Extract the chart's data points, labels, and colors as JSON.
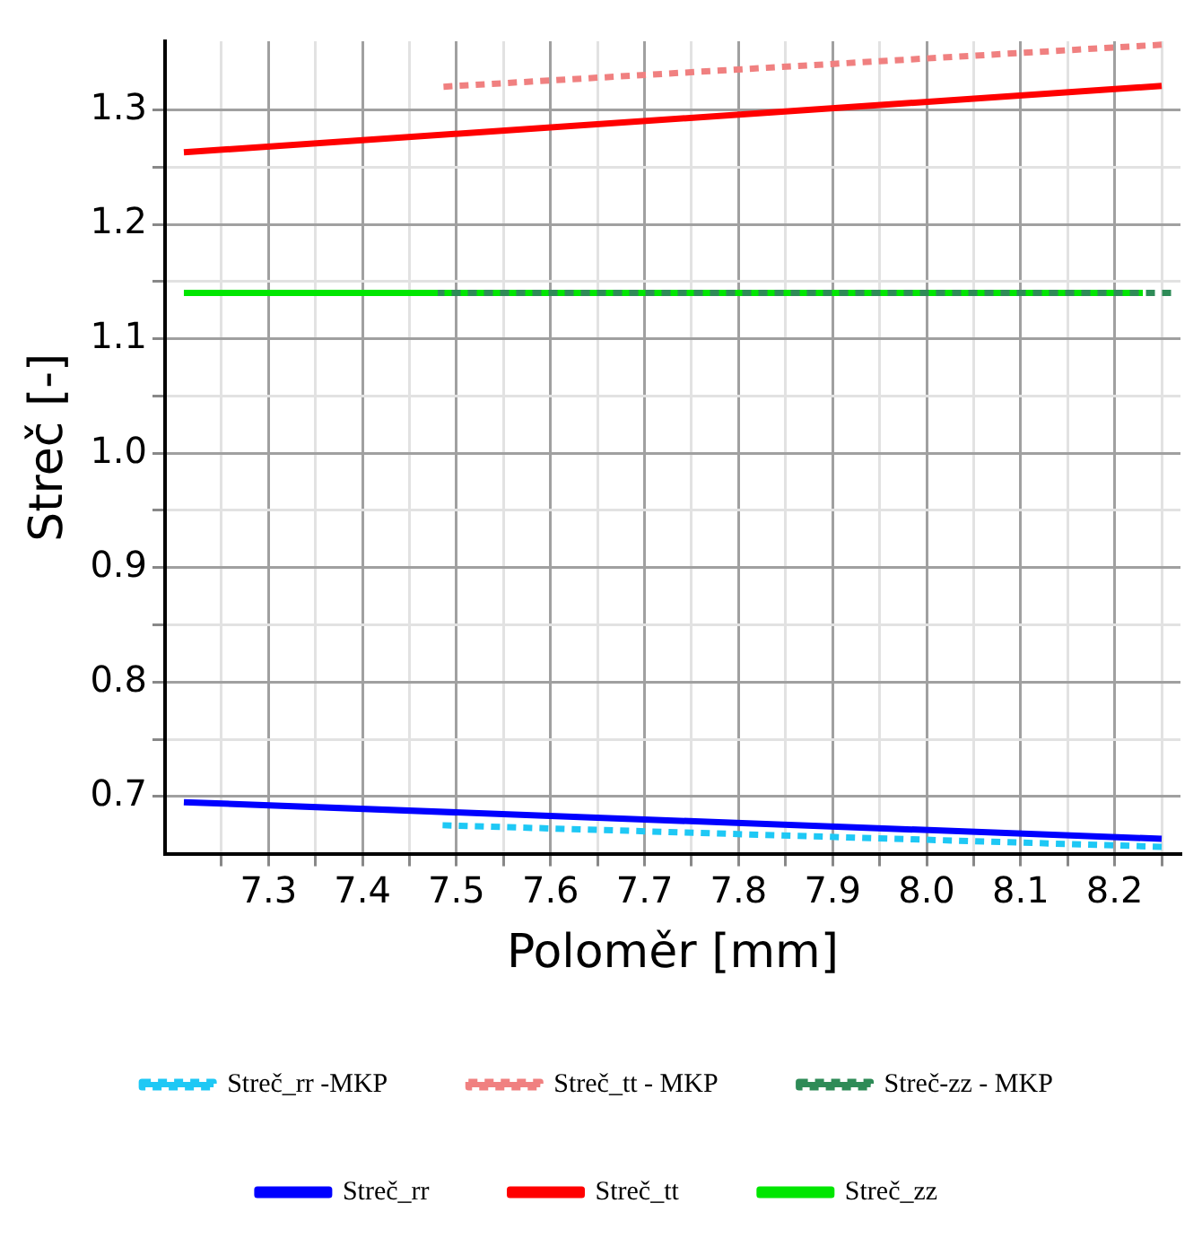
{
  "chart_data": {
    "type": "line",
    "xlabel": "Poloměr [mm]",
    "ylabel": "Streč [-]",
    "xlim": [
      7.19,
      8.27
    ],
    "ylim": [
      0.65,
      1.36
    ],
    "xticks": [
      {
        "value": 7.25,
        "label": null
      },
      7.3,
      {
        "value": 7.35,
        "label": null
      },
      7.4,
      {
        "value": 7.45,
        "label": null
      },
      7.5,
      {
        "value": 7.55,
        "label": null
      },
      7.6,
      {
        "value": 7.65,
        "label": null
      },
      7.7,
      {
        "value": 7.75,
        "label": null
      },
      7.8,
      {
        "value": 7.85,
        "label": null
      },
      7.9,
      {
        "value": 7.95,
        "label": null
      },
      {
        "value": 8.0,
        "label": "8.0"
      },
      {
        "value": 8.05,
        "label": null
      },
      8.1,
      {
        "value": 8.15,
        "label": null
      },
      8.2,
      {
        "value": 8.25,
        "label": null
      }
    ],
    "yticks": [
      {
        "value": 0.7,
        "label": "0.7"
      },
      {
        "value": 0.75,
        "label": null
      },
      0.8,
      {
        "value": 0.85,
        "label": null
      },
      0.9,
      {
        "value": 0.95,
        "label": null
      },
      {
        "value": 1.0,
        "label": "1.0"
      },
      {
        "value": 1.05,
        "label": null
      },
      1.1,
      {
        "value": 1.15,
        "label": null
      },
      1.2,
      {
        "value": 1.25,
        "label": null
      },
      1.3
    ],
    "grid": true,
    "legend": "bottom",
    "marker": "none",
    "series": [
      {
        "name": "Streč_rr -MKP",
        "color": "#1ec8f5",
        "line_style": "dotted",
        "x": [
          7.48,
          8.25
        ],
        "values": [
          0.675,
          0.656
        ]
      },
      {
        "name": "Streč_tt - MKP",
        "color": "#f08080",
        "line_style": "dotted",
        "x": [
          7.48,
          8.25
        ],
        "values": [
          1.32,
          1.357
        ]
      },
      {
        "name": "Streč-zz - MKP",
        "color": "#2e8b57",
        "line_style": "dotted",
        "x": [
          7.48,
          8.26
        ],
        "values": [
          1.14,
          1.14
        ]
      },
      {
        "name": "Streč_rr",
        "color": "#0000ff",
        "line_style": "solid",
        "x": [
          7.21,
          8.25
        ],
        "values": [
          0.695,
          0.663
        ]
      },
      {
        "name": "Streč_tt",
        "color": "#ff0000",
        "line_style": "solid",
        "x": [
          7.21,
          8.25
        ],
        "values": [
          1.263,
          1.321
        ]
      },
      {
        "name": "Streč_zz",
        "color": "#00e600",
        "line_style": "solid",
        "x": [
          7.21,
          8.23
        ],
        "values": [
          1.14,
          1.14
        ]
      }
    ]
  }
}
